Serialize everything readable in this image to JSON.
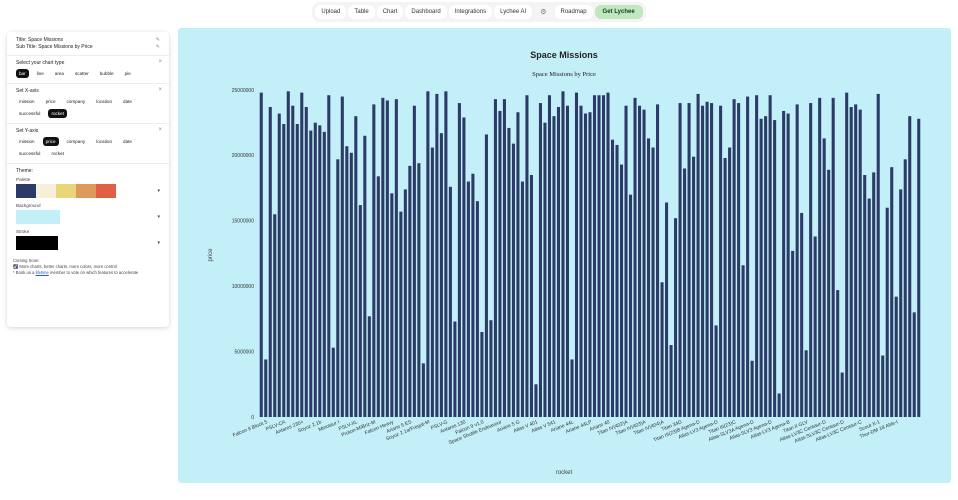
{
  "nav": {
    "items": [
      "Upload",
      "Table",
      "Chart",
      "Dashboard",
      "Integrations",
      "Lychee AI",
      "Roadmap"
    ],
    "settings_icon": "gear-icon",
    "cta": "Get Lychee"
  },
  "sidebar": {
    "title_line": "Title: Space Missions",
    "subtitle_line": "Sub Title: Space Missions by Price",
    "edit_icon": "pencil-icon",
    "close_icon": "close-icon",
    "chart_type": {
      "label": "Select your chart type",
      "options": [
        "bar",
        "line",
        "area",
        "scatter",
        "bubble",
        "pie"
      ],
      "selected": "bar"
    },
    "x_axis": {
      "label": "Set X-axis",
      "options": [
        "mission",
        "price",
        "company",
        "location",
        "date",
        "successful",
        "rocket"
      ],
      "selected": "rocket"
    },
    "y_axis": {
      "label": "Set Y-axis",
      "options": [
        "mission",
        "price",
        "company",
        "location",
        "date",
        "successful",
        "rocket"
      ],
      "selected": "price"
    },
    "theme": {
      "label": "Theme:",
      "palette_label": "Palette",
      "palette": [
        "#2b3a67",
        "#f5f0d7",
        "#e8d77a",
        "#dd9a5a",
        "#e05f45"
      ],
      "background_label": "Background",
      "background": "#c3eff8",
      "stroke_label": "Stroke",
      "stroke": "#000000"
    },
    "footer": {
      "line1": "Coming Soon:",
      "line2": "🌠 More charts, better charts, more colors, more control",
      "line3_prefix": "* Book us a ",
      "line3_link": "lifetime",
      "line3_suffix": " member to vote on which features to accelerate"
    }
  },
  "chart_data": {
    "type": "bar",
    "title": "Space Missions",
    "subtitle": "Space Missions by Price",
    "xlabel": "rocket",
    "ylabel": "price",
    "ylim": [
      0,
      25000000
    ],
    "yticks": [
      0,
      5000000,
      10000000,
      15000000,
      20000000,
      25000000
    ],
    "bar_color": "#2b3a67",
    "grid": false,
    "values": [
      24800000,
      4400000,
      23700000,
      15500000,
      23200000,
      22400000,
      24900000,
      23800000,
      22400000,
      24800000,
      23700000,
      21900000,
      22500000,
      22300000,
      21800000,
      24600000,
      5300000,
      19700000,
      24500000,
      20700000,
      20200000,
      23000000,
      16200000,
      21500000,
      7700000,
      23900000,
      18400000,
      24400000,
      24200000,
      17100000,
      24300000,
      15700000,
      17400000,
      19200000,
      23800000,
      19400000,
      4100000,
      24900000,
      20600000,
      24700000,
      21700000,
      24900000,
      17600000,
      7300000,
      24000000,
      22900000,
      18000000,
      18600000,
      16500000,
      6500000,
      21600000,
      7400000,
      24300000,
      23400000,
      24300000,
      22100000,
      20900000,
      23300000,
      18000000,
      24600000,
      18500000,
      2500000,
      24000000,
      22500000,
      24600000,
      23000000,
      23700000,
      24900000,
      23800000,
      4400000,
      24800000,
      23800000,
      23200000,
      23300000,
      24600000,
      24600000,
      24600000,
      24800000,
      21200000,
      20800000,
      19300000,
      23800000,
      17000000,
      24400000,
      23800000,
      23500000,
      21300000,
      20600000,
      23900000,
      10300000,
      16400000,
      5500000,
      15200000,
      24000000,
      19000000,
      24000000,
      19900000,
      24700000,
      23800000,
      24100000,
      24000000,
      7000000,
      23800000,
      19800000,
      20600000,
      24300000,
      24000000,
      11600000,
      24500000,
      4300000,
      24600000,
      22800000,
      23000000,
      24600000,
      22700000,
      1800000,
      23400000,
      23200000,
      12700000,
      23900000,
      15600000,
      5100000,
      24000000,
      13800000,
      24400000,
      21300000,
      18900000,
      24400000,
      9700000,
      3400000,
      24800000,
      23700000,
      23900000,
      23500000,
      18500000,
      16700000,
      18700000,
      24700000,
      4700000,
      16000000,
      19100000,
      9200000,
      17400000,
      19700000,
      23000000,
      8000000,
      22800000
    ],
    "tick_labels": [
      "Falcon 9 Block 5",
      "PSLV-CA",
      "Antares 230+",
      "Soyuz 2.1b",
      "Minotaur I",
      "PSLV-XL",
      "Proton-M/Briz-M",
      "Falcon Heavy",
      "Ariane 5 ES",
      "Soyuz 2.1a/Fregat-M",
      "PSLV-G",
      "Antares 130",
      "Falcon 9 v1.0",
      "Space Shuttle Endeavour",
      "Ariane 5 G",
      "Atlas V 401",
      "Atlas V 541",
      "Ariane 44L",
      "Ariane 44LP",
      "Ariane 40",
      "Titan IV(402)A",
      "Titan IV(403)A",
      "Titan IV(404)A",
      "Titan 34D",
      "Titan III(23)B Agena-D",
      "Atlas-LV3 Agena-D",
      "Titan III(23)C",
      "Atlas-SLV3A Agena-D",
      "Atlas-SLV3 Agena-D",
      "Atlas-LV3 Agena-B",
      "Titan II GLV",
      "Atlas-LV3C Centaur-D",
      "Atlas-SLV3C Centaur-D",
      "Atlas-LV3C Centaur-C",
      "Scout X-1",
      "Thor-DM 18 Able-I"
    ],
    "tick_positions": [
      1,
      5,
      9,
      13,
      17,
      21,
      25,
      29,
      33,
      37,
      41,
      45,
      49,
      53,
      57,
      61,
      65,
      69,
      73,
      77,
      81,
      85,
      89,
      93,
      97,
      101,
      105,
      109,
      113,
      117,
      121,
      125,
      129,
      133,
      137,
      141
    ]
  }
}
